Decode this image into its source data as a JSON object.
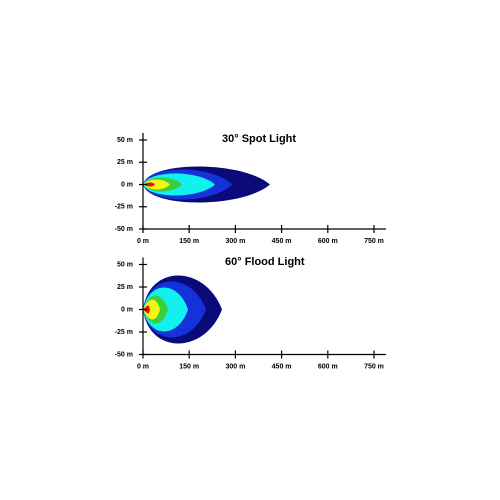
{
  "panels": [
    {
      "title": "30° Spot Light",
      "yticks": [
        "50 m",
        "25 m",
        "0 m",
        "-25 m",
        "-50 m"
      ],
      "xticks": [
        "0 m",
        "150 m",
        "300 m",
        "450 m",
        "600 m",
        "750 m"
      ]
    },
    {
      "title": "60° Flood Light",
      "yticks": [
        "50 m",
        "25 m",
        "0 m",
        "-25 m",
        "-50 m"
      ],
      "xticks": [
        "0 m",
        "150 m",
        "300 m",
        "450 m",
        "600 m",
        "750 m"
      ]
    }
  ]
}
